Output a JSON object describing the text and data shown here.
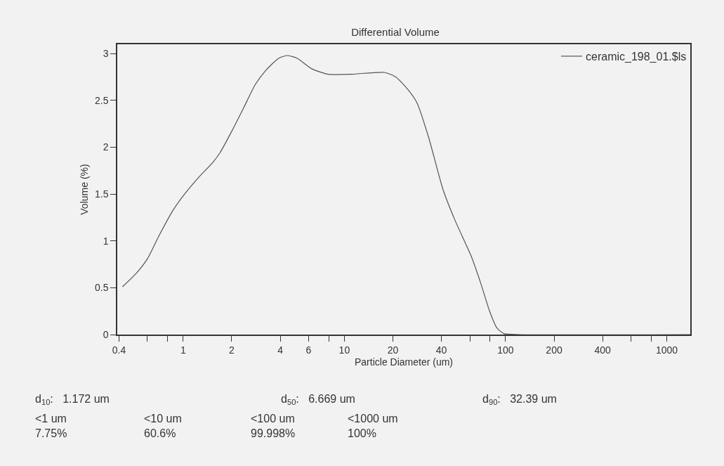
{
  "chart_data": {
    "type": "line",
    "title": "Differential Volume",
    "xlabel": "Particle Diameter (um)",
    "ylabel": "Volume (%)",
    "log": "x",
    "grid": false,
    "legend": "top right",
    "marker": "none",
    "line_style": "solid",
    "xlim": [
      0.39,
      1400
    ],
    "ylim": [
      0,
      3.1
    ],
    "xticks": [
      0.4,
      {
        "value": 0.6,
        "label": null
      },
      {
        "value": 0.8,
        "label": null
      },
      1,
      2,
      4,
      6,
      {
        "value": 8,
        "label": null
      },
      10,
      20,
      40,
      {
        "value": 60,
        "label": null
      },
      {
        "value": 80,
        "label": null
      },
      100,
      200,
      400,
      {
        "value": 600,
        "label": null
      },
      {
        "value": 800,
        "label": null
      },
      1000
    ],
    "yticks": [
      0,
      0.5,
      1,
      1.5,
      2,
      2.5,
      3
    ],
    "series": [
      {
        "name": "ceramic_198_01.$ls",
        "color": "#555555",
        "x": [
          0.42,
          0.515,
          0.6,
          0.71,
          0.866,
          1.02,
          1.25,
          1.53,
          1.69,
          2.0,
          2.37,
          2.8,
          3.25,
          3.91,
          4.4,
          5.1,
          6.25,
          7.9,
          11.1,
          17.7,
          20.9,
          24.7,
          28.3,
          33.4,
          40.9,
          48.3,
          61.1,
          69.8,
          80,
          88.4,
          97.7,
          120,
          1400
        ],
        "values": [
          0.51,
          0.66,
          0.81,
          1.06,
          1.33,
          1.5,
          1.68,
          1.84,
          1.94,
          2.17,
          2.42,
          2.67,
          2.82,
          2.95,
          2.98,
          2.95,
          2.84,
          2.78,
          2.78,
          2.8,
          2.75,
          2.62,
          2.47,
          2.1,
          1.55,
          1.23,
          0.84,
          0.56,
          0.24,
          0.07,
          0.01,
          0,
          0
        ]
      }
    ],
    "annotations": [
      "d$_{10}$:   1.172 um",
      "d$_{50}$:   6.669 um",
      "d$_{90}$:   32.39 um",
      "<1 um\n7.75%",
      "<10 um\n60.6%",
      "<100 um\n99.998%",
      "<1000 um\n100%"
    ]
  }
}
